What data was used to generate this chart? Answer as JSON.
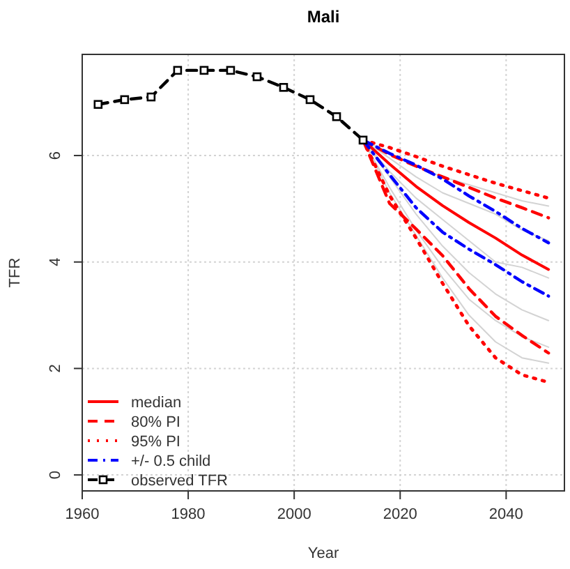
{
  "chart_data": {
    "type": "line",
    "title": "Mali",
    "xlabel": "Year",
    "ylabel": "TFR",
    "xlim": [
      1960,
      2051
    ],
    "xticks": [
      1960,
      1980,
      2000,
      2020,
      2040
    ],
    "ylim": [
      -0.3,
      7.9
    ],
    "yticks": [
      0,
      2,
      4,
      6
    ],
    "grid": true,
    "legend": "bottom left",
    "series": [
      {
        "color": "#d3d3d3",
        "line_style": "solid",
        "marker": "none",
        "x": [
          2013,
          2018,
          2023,
          2028,
          2033,
          2038,
          2043,
          2048
        ],
        "values": [
          6.29,
          6.05,
          5.8,
          5.6,
          5.45,
          5.3,
          5.15,
          5.05
        ]
      },
      {
        "color": "#d3d3d3",
        "line_style": "solid",
        "marker": "none",
        "x": [
          2013,
          2018,
          2023,
          2028,
          2033,
          2038,
          2043,
          2048
        ],
        "values": [
          6.29,
          5.95,
          5.6,
          5.3,
          5.1,
          4.9,
          4.6,
          4.4
        ]
      },
      {
        "color": "#d3d3d3",
        "line_style": "solid",
        "marker": "none",
        "x": [
          2013,
          2018,
          2023,
          2028,
          2033,
          2038,
          2043,
          2048
        ],
        "values": [
          6.29,
          5.7,
          5.2,
          4.8,
          4.4,
          4.0,
          3.9,
          3.7
        ]
      },
      {
        "color": "#d3d3d3",
        "line_style": "solid",
        "marker": "none",
        "x": [
          2013,
          2018,
          2023,
          2028,
          2033,
          2038,
          2043,
          2048
        ],
        "values": [
          6.29,
          5.6,
          4.9,
          4.3,
          3.8,
          3.4,
          3.1,
          2.9
        ]
      },
      {
        "color": "#d3d3d3",
        "line_style": "solid",
        "marker": "none",
        "x": [
          2013,
          2018,
          2023,
          2028,
          2033,
          2038,
          2043,
          2048
        ],
        "values": [
          6.29,
          5.4,
          4.6,
          3.9,
          3.3,
          2.9,
          2.6,
          2.4
        ]
      },
      {
        "color": "#d3d3d3",
        "line_style": "solid",
        "marker": "none",
        "x": [
          2013,
          2018,
          2023,
          2028,
          2033,
          2038,
          2043,
          2048
        ],
        "values": [
          6.29,
          5.3,
          4.5,
          3.7,
          3.0,
          2.5,
          2.2,
          2.1
        ]
      },
      {
        "name": "median",
        "color": "#ff0000",
        "line_style": "solid",
        "marker": "none",
        "x": [
          2013,
          2018,
          2023,
          2028,
          2033,
          2038,
          2043,
          2048
        ],
        "values": [
          6.29,
          5.84,
          5.42,
          5.06,
          4.74,
          4.45,
          4.13,
          3.86
        ]
      },
      {
        "name": "80% PI",
        "color": "#ff0000",
        "line_style": "dashed",
        "marker": "none",
        "x": [
          2013,
          2018,
          2023,
          2028,
          2033,
          2038,
          2043,
          2048
        ],
        "values": [
          6.29,
          6.02,
          5.8,
          5.6,
          5.4,
          5.2,
          5.02,
          4.83
        ]
      },
      {
        "color": "#ff0000",
        "line_style": "dashed",
        "marker": "none",
        "x": [
          2013,
          2018,
          2023,
          2028,
          2033,
          2038,
          2043,
          2048
        ],
        "values": [
          6.29,
          5.1,
          4.62,
          4.12,
          3.5,
          2.98,
          2.62,
          2.29
        ]
      },
      {
        "name": "95% PI",
        "color": "#ff0000",
        "line_style": "dotted",
        "marker": "none",
        "x": [
          2013,
          2018,
          2023,
          2028,
          2033,
          2038,
          2043,
          2048
        ],
        "values": [
          6.29,
          6.15,
          5.98,
          5.8,
          5.64,
          5.48,
          5.34,
          5.2
        ]
      },
      {
        "color": "#ff0000",
        "line_style": "dotted",
        "marker": "none",
        "x": [
          2013,
          2018,
          2023,
          2028,
          2033,
          2038,
          2043,
          2048
        ],
        "values": [
          6.29,
          5.25,
          4.45,
          3.6,
          2.8,
          2.2,
          1.88,
          1.74
        ]
      },
      {
        "name": "+/- 0.5 child",
        "color": "#0000ff",
        "line_style": "dashdot",
        "marker": "none",
        "x": [
          2013,
          2018,
          2023,
          2028,
          2033,
          2038,
          2043,
          2048
        ],
        "values": [
          6.29,
          6.04,
          5.82,
          5.56,
          5.24,
          4.95,
          4.63,
          4.36
        ]
      },
      {
        "color": "#0000ff",
        "line_style": "dashdot",
        "marker": "none",
        "x": [
          2013,
          2018,
          2023,
          2028,
          2033,
          2038,
          2043,
          2048
        ],
        "values": [
          6.29,
          5.64,
          5.02,
          4.56,
          4.24,
          3.95,
          3.63,
          3.36
        ]
      },
      {
        "name": "observed TFR",
        "color": "#000000",
        "line_style": "dashed",
        "marker": "square",
        "x": [
          1963,
          1968,
          1973,
          1978,
          1983,
          1988,
          1993,
          1998,
          2003,
          2008,
          2013
        ],
        "values": [
          6.96,
          7.05,
          7.1,
          7.6,
          7.6,
          7.6,
          7.48,
          7.28,
          7.05,
          6.73,
          6.29
        ]
      }
    ]
  }
}
